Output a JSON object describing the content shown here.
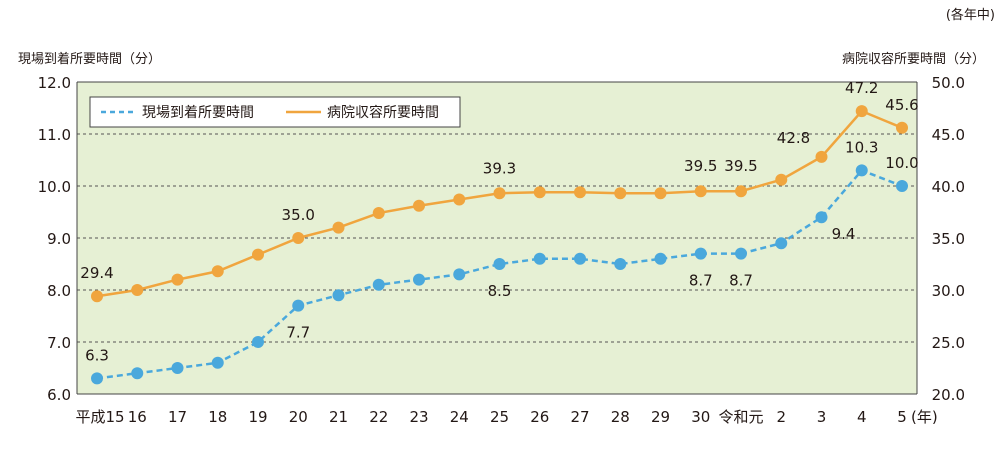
{
  "chart_data": {
    "type": "line",
    "note": "(各年中)",
    "ylabel_left": "現場到着所要時間（分）",
    "ylabel_right": "病院収容所要時間（分）",
    "x_unit": "(年)",
    "categories": [
      "平成15",
      "16",
      "17",
      "18",
      "19",
      "20",
      "21",
      "22",
      "23",
      "24",
      "25",
      "26",
      "27",
      "28",
      "29",
      "30",
      "令和元",
      "2",
      "3",
      "4",
      "5"
    ],
    "left_axis": {
      "range": [
        6.0,
        12.0
      ],
      "ticks": [
        "6.0",
        "7.0",
        "8.0",
        "9.0",
        "10.0",
        "11.0",
        "12.0"
      ]
    },
    "right_axis": {
      "range": [
        20.0,
        50.0
      ],
      "ticks": [
        "20.0",
        "25.0",
        "30.0",
        "35.0",
        "40.0",
        "45.0",
        "50.0"
      ]
    },
    "grid": "horizontal dashed",
    "legend_position": "top-left",
    "series": [
      {
        "name": "現場到着所要時間",
        "axis": "left",
        "style": "dashed",
        "color": "#4aa8dc",
        "values": [
          6.3,
          6.4,
          6.5,
          6.6,
          7.0,
          7.7,
          7.9,
          8.1,
          8.2,
          8.3,
          8.5,
          8.6,
          8.6,
          8.5,
          8.6,
          8.7,
          8.7,
          8.9,
          9.4,
          10.3,
          10.0
        ],
        "labels": [
          {
            "index": 0,
            "text": "6.3"
          },
          {
            "index": 5,
            "text": "7.7"
          },
          {
            "index": 10,
            "text": "8.5"
          },
          {
            "index": 15,
            "text": "8.7"
          },
          {
            "index": 16,
            "text": "8.7"
          },
          {
            "index": 18,
            "text": "9.4"
          },
          {
            "index": 19,
            "text": "10.3"
          },
          {
            "index": 20,
            "text": "10.0"
          }
        ]
      },
      {
        "name": "病院収容所要時間",
        "axis": "right",
        "style": "solid",
        "color": "#f0a53e",
        "values": [
          29.4,
          30.0,
          31.0,
          31.8,
          33.4,
          35.0,
          36.0,
          37.4,
          38.1,
          38.7,
          39.3,
          39.4,
          39.4,
          39.3,
          39.3,
          39.5,
          39.5,
          40.6,
          42.8,
          47.2,
          45.6
        ],
        "labels": [
          {
            "index": 0,
            "text": "29.4"
          },
          {
            "index": 5,
            "text": "35.0"
          },
          {
            "index": 10,
            "text": "39.3"
          },
          {
            "index": 15,
            "text": "39.5"
          },
          {
            "index": 16,
            "text": "39.5"
          },
          {
            "index": 18,
            "text": "42.8"
          },
          {
            "index": 19,
            "text": "47.2"
          },
          {
            "index": 20,
            "text": "45.6"
          }
        ]
      }
    ]
  }
}
